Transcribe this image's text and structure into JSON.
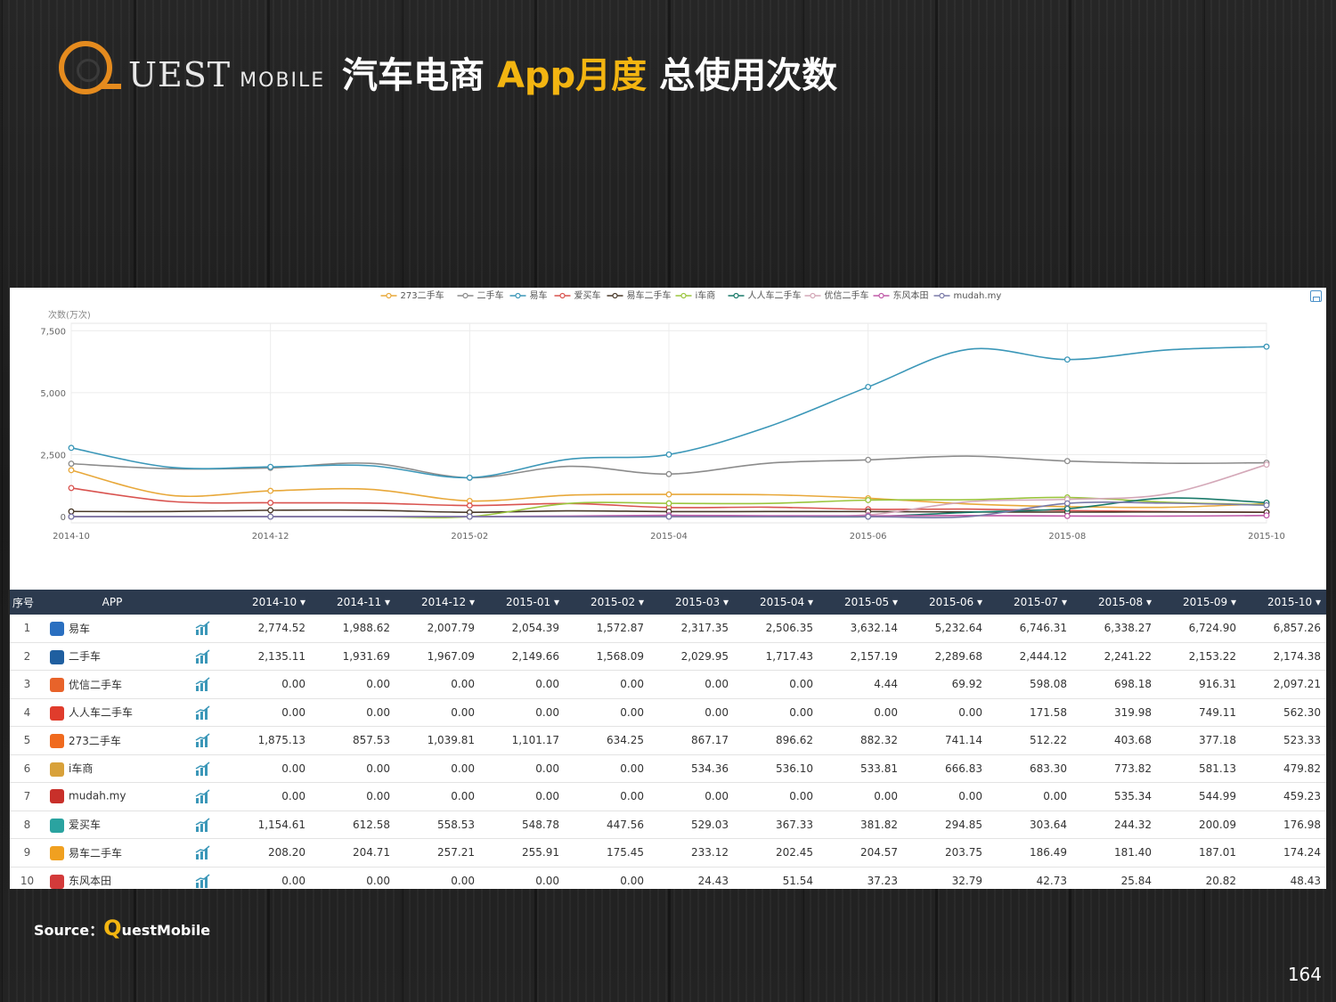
{
  "logo": {
    "text": "UEST",
    "sub": "MOBILE"
  },
  "title": {
    "part1": "汽车电商 ",
    "highlight": "App月度",
    "part2": " 总使用次数"
  },
  "source": {
    "label": "Source：",
    "q": "Q",
    "brand": "uestMobile"
  },
  "page_number": "164",
  "chart_data": {
    "type": "line",
    "ylabel": "次数(万次)",
    "ylim": [
      -250,
      7800
    ],
    "yticks": [
      0,
      2500,
      5000,
      7500
    ],
    "ytick_labels": [
      "0",
      "2,500",
      "5,000",
      "7,500"
    ],
    "x": [
      "2014-10",
      "2014-11",
      "2014-12",
      "2015-01",
      "2015-02",
      "2015-03",
      "2015-04",
      "2015-05",
      "2015-06",
      "2015-07",
      "2015-08",
      "2015-09",
      "2015-10"
    ],
    "xtick_labels": [
      "2014-10",
      "2014-12",
      "2015-02",
      "2015-04",
      "2015-06",
      "2015-08",
      "2015-10"
    ],
    "xtick_index": [
      0,
      2,
      4,
      6,
      8,
      10,
      12
    ],
    "legend_position": "top",
    "series": [
      {
        "name": "273二手车",
        "color": "#e8a83a",
        "values": [
          1875.13,
          857.53,
          1039.81,
          1101.17,
          634.25,
          867.17,
          896.62,
          882.32,
          741.14,
          512.22,
          403.68,
          377.18,
          523.33
        ]
      },
      {
        "name": "二手车",
        "color": "#8c8c8c",
        "values": [
          2135.11,
          1931.69,
          1967.09,
          2149.66,
          1568.09,
          2029.95,
          1717.43,
          2157.19,
          2289.68,
          2444.12,
          2241.22,
          2153.22,
          2174.38
        ]
      },
      {
        "name": "易车",
        "color": "#3b97b8",
        "values": [
          2774.52,
          1988.62,
          2007.79,
          2054.39,
          1572.87,
          2317.35,
          2506.35,
          3632.14,
          5232.64,
          6746.31,
          6338.27,
          6724.9,
          6857.26
        ]
      },
      {
        "name": "爱买车",
        "color": "#d9534f",
        "values": [
          1154.61,
          612.58,
          558.53,
          548.78,
          447.56,
          529.03,
          367.33,
          381.82,
          294.85,
          303.64,
          244.32,
          200.09,
          176.98
        ]
      },
      {
        "name": "易车二手车",
        "color": "#4a3a2a",
        "values": [
          208.2,
          204.71,
          257.21,
          255.91,
          175.45,
          233.12,
          202.45,
          204.57,
          203.75,
          186.49,
          181.4,
          187.01,
          174.24
        ]
      },
      {
        "name": "i车商",
        "color": "#9bc53d",
        "values": [
          0,
          0,
          0,
          0,
          0,
          534.36,
          536.1,
          533.81,
          666.83,
          683.3,
          773.82,
          581.13,
          479.82
        ]
      },
      {
        "name": "人人车二手车",
        "color": "#1a7a6a",
        "values": [
          0,
          0,
          0,
          0,
          0,
          0,
          0,
          0,
          0,
          171.58,
          319.98,
          749.11,
          562.3
        ]
      },
      {
        "name": "优信二手车",
        "color": "#d4a8b8",
        "values": [
          0,
          0,
          0,
          0,
          0,
          0,
          0,
          4.44,
          69.92,
          598.08,
          698.18,
          916.31,
          2097.21
        ]
      },
      {
        "name": "东风本田",
        "color": "#c05aa8",
        "values": [
          0,
          0,
          0,
          0,
          0,
          24.43,
          51.54,
          37.23,
          32.79,
          42.73,
          25.84,
          20.82,
          48.43
        ]
      },
      {
        "name": "mudah.my",
        "color": "#7a7aa8",
        "values": [
          0,
          0,
          0,
          0,
          0,
          0,
          0,
          0,
          0,
          0,
          535.34,
          544.99,
          459.23
        ]
      }
    ]
  },
  "table": {
    "headers": {
      "idx": "序号",
      "app": "APP",
      "months": [
        "2014-10 ▾",
        "2014-11 ▾",
        "2014-12 ▾",
        "2015-01 ▾",
        "2015-02 ▾",
        "2015-03 ▾",
        "2015-04 ▾",
        "2015-05 ▾",
        "2015-06 ▾",
        "2015-07 ▾",
        "2015-08 ▾",
        "2015-09 ▾",
        "2015-10 ▾"
      ]
    },
    "rows": [
      {
        "idx": "1",
        "name": "易车",
        "icon": "yiche-app-icon",
        "icon_color": "#2a6fc0",
        "values": [
          "2,774.52",
          "1,988.62",
          "2,007.79",
          "2,054.39",
          "1,572.87",
          "2,317.35",
          "2,506.35",
          "3,632.14",
          "5,232.64",
          "6,746.31",
          "6,338.27",
          "6,724.90",
          "6,857.26"
        ]
      },
      {
        "idx": "2",
        "name": "二手车",
        "icon": "ershouche-app-icon",
        "icon_color": "#1f5fa0",
        "values": [
          "2,135.11",
          "1,931.69",
          "1,967.09",
          "2,149.66",
          "1,568.09",
          "2,029.95",
          "1,717.43",
          "2,157.19",
          "2,289.68",
          "2,444.12",
          "2,241.22",
          "2,153.22",
          "2,174.38"
        ]
      },
      {
        "idx": "3",
        "name": "优信二手车",
        "icon": "youxin-app-icon",
        "icon_color": "#e8632a",
        "values": [
          "0.00",
          "0.00",
          "0.00",
          "0.00",
          "0.00",
          "0.00",
          "0.00",
          "4.44",
          "69.92",
          "598.08",
          "698.18",
          "916.31",
          "2,097.21"
        ]
      },
      {
        "idx": "4",
        "name": "人人车二手车",
        "icon": "renrenche-app-icon",
        "icon_color": "#e03c2c",
        "values": [
          "0.00",
          "0.00",
          "0.00",
          "0.00",
          "0.00",
          "0.00",
          "0.00",
          "0.00",
          "0.00",
          "171.58",
          "319.98",
          "749.11",
          "562.30"
        ]
      },
      {
        "idx": "5",
        "name": "273二手车",
        "icon": "273-app-icon",
        "icon_color": "#f06a1e",
        "values": [
          "1,875.13",
          "857.53",
          "1,039.81",
          "1,101.17",
          "634.25",
          "867.17",
          "896.62",
          "882.32",
          "741.14",
          "512.22",
          "403.68",
          "377.18",
          "523.33"
        ]
      },
      {
        "idx": "6",
        "name": "i车商",
        "icon": "icheshang-app-icon",
        "icon_color": "#d8a13a",
        "values": [
          "0.00",
          "0.00",
          "0.00",
          "0.00",
          "0.00",
          "534.36",
          "536.10",
          "533.81",
          "666.83",
          "683.30",
          "773.82",
          "581.13",
          "479.82"
        ]
      },
      {
        "idx": "7",
        "name": "mudah.my",
        "icon": "mudah-app-icon",
        "icon_color": "#c8302a",
        "values": [
          "0.00",
          "0.00",
          "0.00",
          "0.00",
          "0.00",
          "0.00",
          "0.00",
          "0.00",
          "0.00",
          "0.00",
          "535.34",
          "544.99",
          "459.23"
        ]
      },
      {
        "idx": "8",
        "name": "爱买车",
        "icon": "aimaiche-app-icon",
        "icon_color": "#2aa3a0",
        "values": [
          "1,154.61",
          "612.58",
          "558.53",
          "548.78",
          "447.56",
          "529.03",
          "367.33",
          "381.82",
          "294.85",
          "303.64",
          "244.32",
          "200.09",
          "176.98"
        ]
      },
      {
        "idx": "9",
        "name": "易车二手车",
        "icon": "yicheershouche-app-icon",
        "icon_color": "#f0a020",
        "values": [
          "208.20",
          "204.71",
          "257.21",
          "255.91",
          "175.45",
          "233.12",
          "202.45",
          "204.57",
          "203.75",
          "186.49",
          "181.40",
          "187.01",
          "174.24"
        ]
      },
      {
        "idx": "10",
        "name": "东风本田",
        "icon": "dongfenghonda-app-icon",
        "icon_color": "#d33a3a",
        "values": [
          "0.00",
          "0.00",
          "0.00",
          "0.00",
          "0.00",
          "24.43",
          "51.54",
          "37.23",
          "32.79",
          "42.73",
          "25.84",
          "20.82",
          "48.43"
        ]
      }
    ]
  }
}
